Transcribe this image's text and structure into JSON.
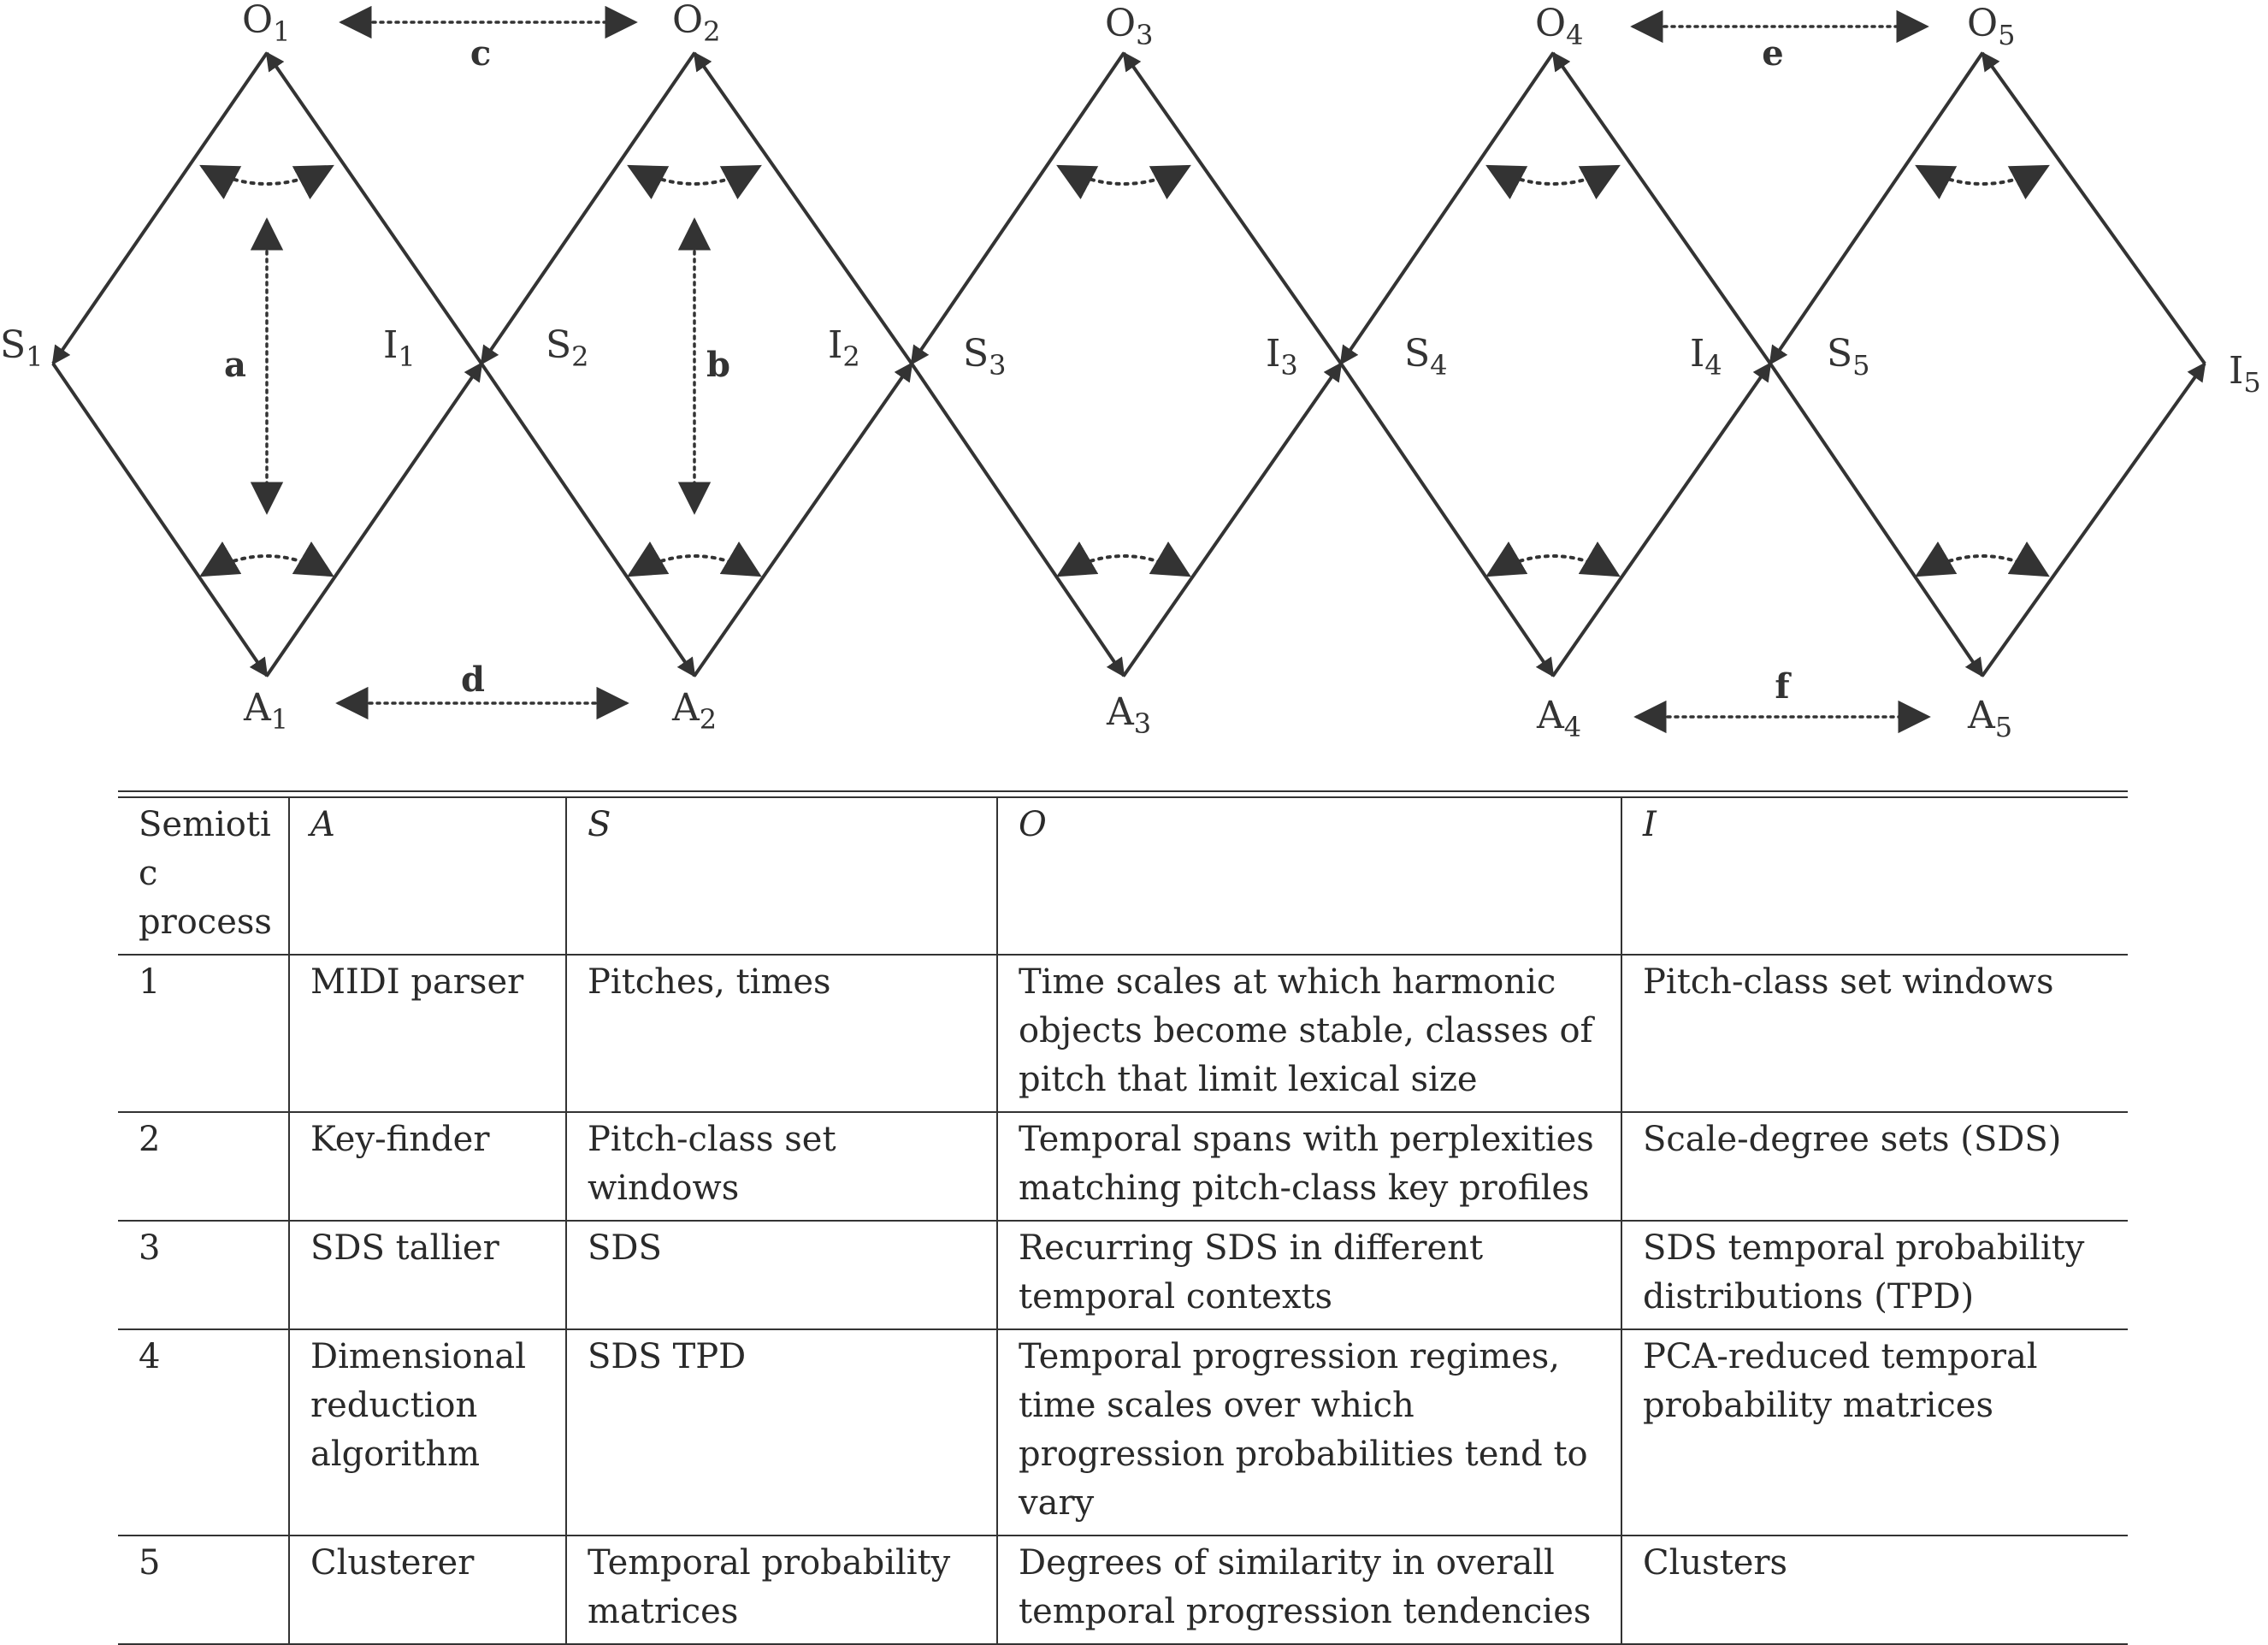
{
  "diagram": {
    "nodes": [
      {
        "letter": "O",
        "sub": "1"
      },
      {
        "letter": "O",
        "sub": "2"
      },
      {
        "letter": "O",
        "sub": "3"
      },
      {
        "letter": "O",
        "sub": "4"
      },
      {
        "letter": "O",
        "sub": "5"
      },
      {
        "letter": "S",
        "sub": "1"
      },
      {
        "letter": "S",
        "sub": "2"
      },
      {
        "letter": "S",
        "sub": "3"
      },
      {
        "letter": "S",
        "sub": "4"
      },
      {
        "letter": "S",
        "sub": "5"
      },
      {
        "letter": "I",
        "sub": "1"
      },
      {
        "letter": "I",
        "sub": "2"
      },
      {
        "letter": "I",
        "sub": "3"
      },
      {
        "letter": "I",
        "sub": "4"
      },
      {
        "letter": "I",
        "sub": "5"
      },
      {
        "letter": "A",
        "sub": "1"
      },
      {
        "letter": "A",
        "sub": "2"
      },
      {
        "letter": "A",
        "sub": "3"
      },
      {
        "letter": "A",
        "sub": "4"
      },
      {
        "letter": "A",
        "sub": "5"
      }
    ],
    "relation_labels": [
      "a",
      "b",
      "c",
      "d",
      "e",
      "f"
    ]
  },
  "table": {
    "headers": [
      "Semiotic process",
      "A",
      "S",
      "O",
      "I"
    ],
    "rows": [
      {
        "process": "1",
        "a": "MIDI parser",
        "s": "Pitches, times",
        "o": "Time scales at which harmonic objects become stable, classes of pitch that limit lexical size",
        "i": "Pitch-class set windows"
      },
      {
        "process": "2",
        "a": "Key-finder",
        "s": "Pitch-class set windows",
        "o": "Temporal spans with perplexities matching pitch-class key profiles",
        "i": "Scale-degree sets (SDS)"
      },
      {
        "process": "3",
        "a": "SDS tallier",
        "s": "SDS",
        "o": "Recurring SDS in different temporal contexts",
        "i": "SDS temporal probability distributions (TPD)"
      },
      {
        "process": "4",
        "a": "Dimensional reduction algorithm",
        "s": "SDS TPD",
        "o": "Temporal progression regimes, time scales over which progression probabilities tend to vary",
        "i": "PCA-reduced temporal probability matrices"
      },
      {
        "process": "5",
        "a": "Clusterer",
        "s": "Temporal probability matrices",
        "o": "Degrees of similarity in overall temporal progression tendencies",
        "i": "Clusters"
      }
    ]
  }
}
